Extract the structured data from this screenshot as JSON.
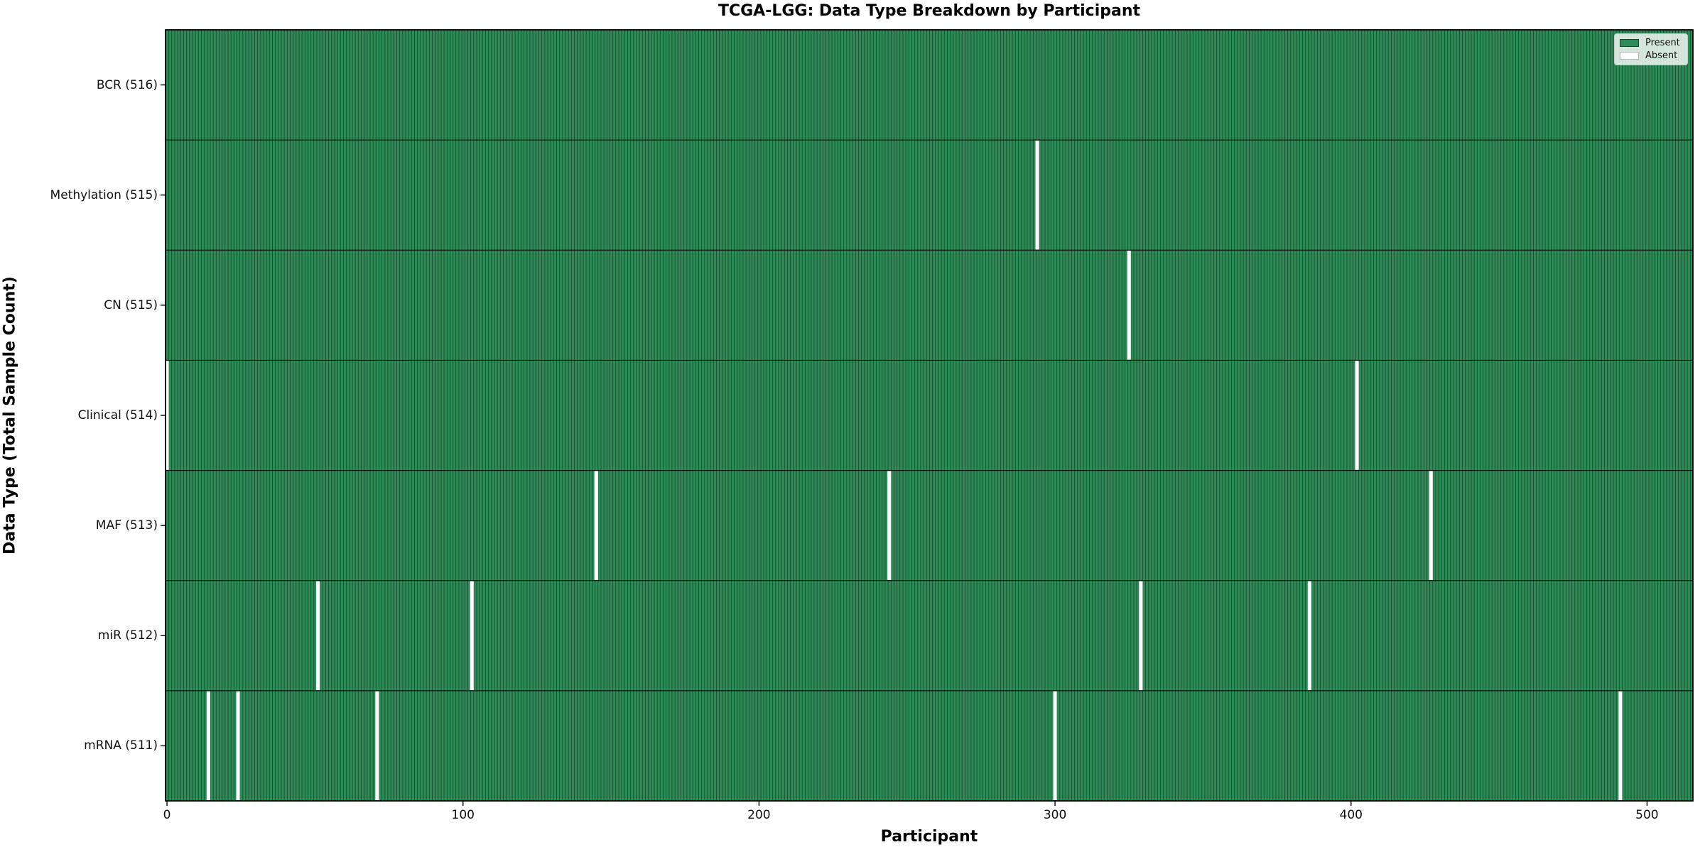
{
  "title": "TCGA-LGG: Data Type Breakdown by Participant",
  "colors": {
    "present": "#2e8b57",
    "absent": "#ffffff",
    "column_edge": "rgba(0,0,0,0.45)",
    "axes_border": "#000000",
    "legend_border": "#cccccc"
  },
  "legend": {
    "items": [
      {
        "label": "Present",
        "color": "#2e8b57"
      },
      {
        "label": "Absent",
        "color": "#ffffff"
      }
    ]
  },
  "chart_data": {
    "type": "heatmap",
    "title": "TCGA-LGG: Data Type Breakdown by Participant",
    "xlabel": "Participant",
    "ylabel": "Data Type (Total Sample Count)",
    "legend": [
      "Present",
      "Absent"
    ],
    "legend_position": "upper right",
    "n_participants": 516,
    "x_ticks": [
      0,
      100,
      200,
      300,
      400,
      500
    ],
    "x_range": [
      0,
      516
    ],
    "grid": false,
    "rows": [
      {
        "label": "BCR (516)",
        "total": 516,
        "absent_participants": []
      },
      {
        "label": "Methylation (515)",
        "total": 515,
        "absent_participants": [
          294
        ]
      },
      {
        "label": "CN (515)",
        "total": 515,
        "absent_participants": [
          325
        ]
      },
      {
        "label": "Clinical (514)",
        "total": 514,
        "absent_participants": [
          0,
          402
        ]
      },
      {
        "label": "MAF (513)",
        "total": 513,
        "absent_participants": [
          145,
          244,
          427
        ]
      },
      {
        "label": "miR (512)",
        "total": 512,
        "absent_participants": [
          51,
          103,
          329,
          386
        ]
      },
      {
        "label": "mRNA (511)",
        "total": 511,
        "absent_participants": [
          14,
          24,
          71,
          300,
          491
        ]
      }
    ]
  }
}
